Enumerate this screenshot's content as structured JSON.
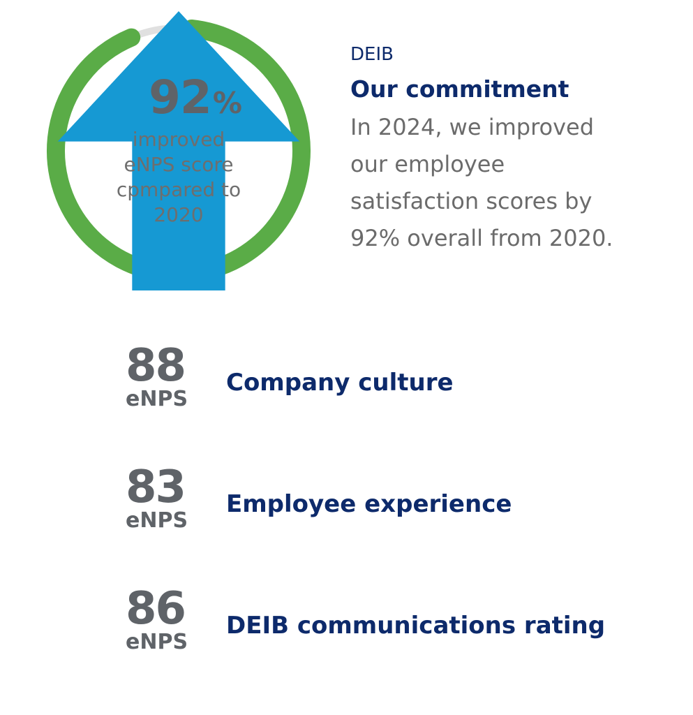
{
  "ring": {
    "value": "92",
    "percent_sign": "%",
    "fill_fraction": 0.92,
    "caption": [
      "improved",
      "eNPS score",
      "cpmpared to",
      "2020"
    ],
    "colors": {
      "fill": "#5aac47",
      "track": "#e0e0e0",
      "arrow": "#1699d3"
    },
    "icon": "arrow-up-icon"
  },
  "commitment": {
    "tag": "DEIB",
    "title": "Our commitment",
    "body_lines": [
      "In 2024, we improved",
      "our employee",
      "satisfaction scores by",
      "92% overall from 2020."
    ]
  },
  "metrics": [
    {
      "value": "88",
      "unit": "eNPS",
      "label": "Company culture"
    },
    {
      "value": "83",
      "unit": "eNPS",
      "label": "Employee experience"
    },
    {
      "value": "86",
      "unit": "eNPS",
      "label": "DEIB communications rating"
    }
  ],
  "colors": {
    "navy": "#0d2a6b",
    "gray_text": "#5f6368"
  }
}
